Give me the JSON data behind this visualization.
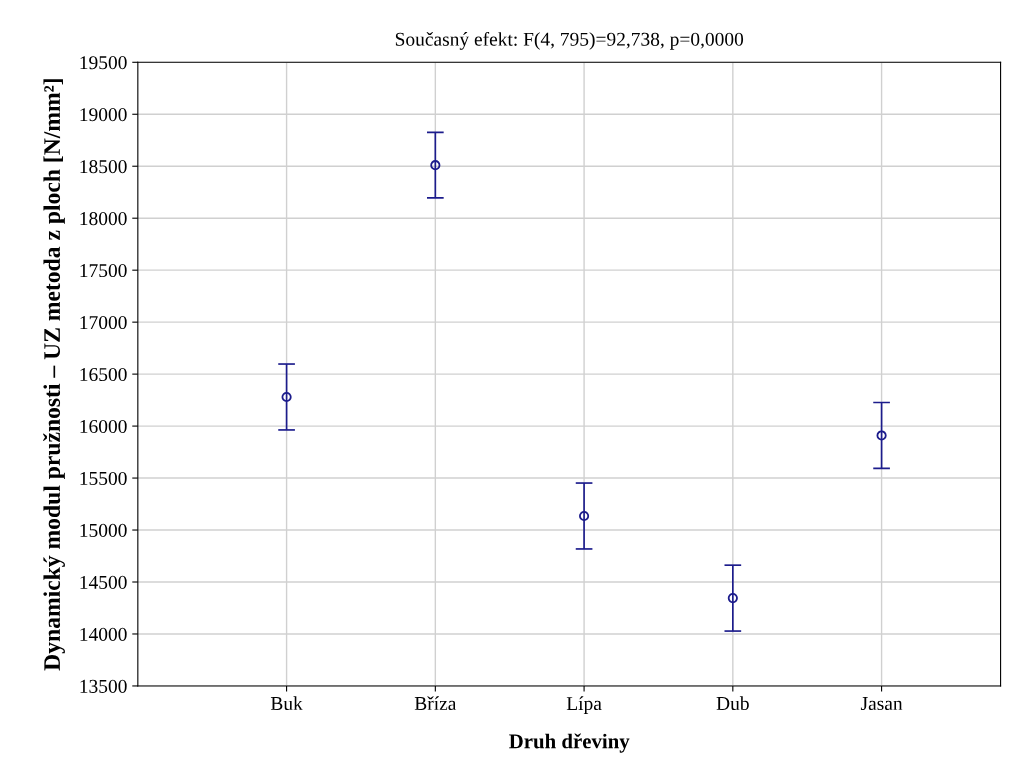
{
  "chart_data": {
    "type": "scatter",
    "title": "Současný efekt: F(4, 795)=92,738, p=0,0000",
    "xlabel": "Druh dřeviny",
    "ylabel": "Dynamický modul pružnosti – UZ metoda z ploch [N/mm²]",
    "categories": [
      "Buk",
      "Bříza",
      "Lípa",
      "Dub",
      "Jasan"
    ],
    "series": [
      {
        "color": "#1c1c8c",
        "values": [
          16280,
          18510,
          15135,
          14345,
          15910
        ],
        "errors": [
          317,
          315,
          317,
          317,
          317
        ]
      }
    ],
    "ylim": [
      13500,
      19500
    ],
    "yticks": [
      13500,
      14000,
      14500,
      15000,
      15500,
      16000,
      16500,
      17000,
      17500,
      18000,
      18500,
      19000,
      19500
    ],
    "grid": true,
    "marker": "circle"
  }
}
